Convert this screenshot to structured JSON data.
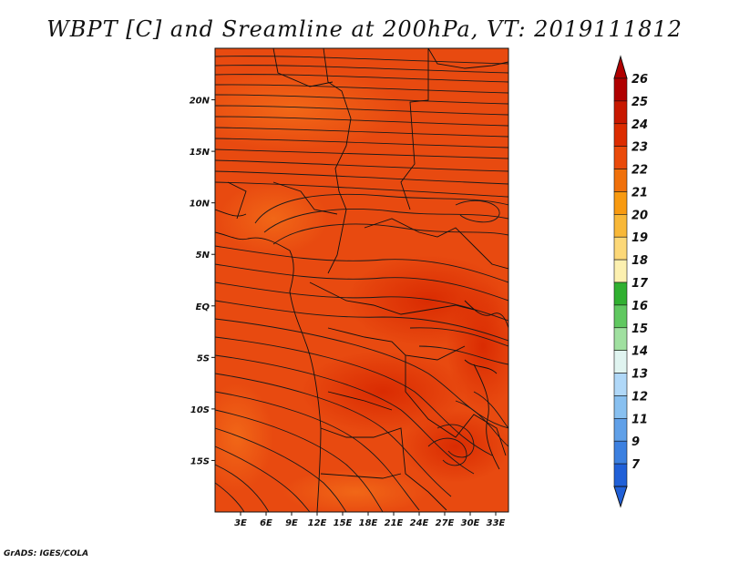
{
  "title": "WBPT [C] and Sreamline at 200hPa, VT: 2019111812",
  "credit": "GrADS: IGES/COLA",
  "map": {
    "lon_ticks": [
      "3E",
      "6E",
      "9E",
      "12E",
      "15E",
      "18E",
      "21E",
      "24E",
      "27E",
      "30E",
      "33E"
    ],
    "lat_ticks": [
      "20N",
      "15N",
      "10N",
      "5N",
      "EQ",
      "5S",
      "10S",
      "15S"
    ],
    "lon_range": [
      0,
      34.5
    ],
    "lat_range": [
      -20,
      25
    ],
    "field_color": "#e84a10"
  },
  "colorbar": {
    "levels": [
      "26",
      "25",
      "24",
      "23",
      "22",
      "21",
      "20",
      "19",
      "18",
      "17",
      "16",
      "15",
      "14",
      "13",
      "12",
      "11",
      "9",
      "7"
    ],
    "colors": [
      "#b00000",
      "#c81800",
      "#dc2c00",
      "#ea4a0a",
      "#f0700a",
      "#f89a10",
      "#f8b838",
      "#fcd878",
      "#fcf0b0",
      "#30b030",
      "#60c860",
      "#a0e0a0",
      "#e0f4f0",
      "#b0d8f8",
      "#88c0f0",
      "#60a0e8",
      "#3c80e0",
      "#2060d8"
    ]
  }
}
